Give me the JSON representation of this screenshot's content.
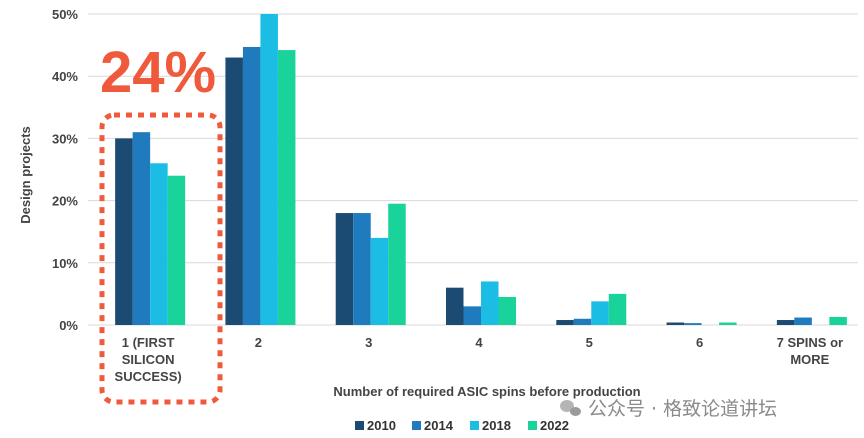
{
  "chart_data": {
    "type": "bar",
    "title": "",
    "xlabel": "Number of required ASIC spins before production",
    "ylabel": "Design projects",
    "ylim": [
      0,
      50
    ],
    "yticks": [
      "0%",
      "10%",
      "20%",
      "30%",
      "40%",
      "50%"
    ],
    "ytick_values": [
      0,
      10,
      20,
      30,
      40,
      50
    ],
    "categories": [
      [
        "1 (FIRST",
        "SILICON",
        "SUCCESS)"
      ],
      [
        "2"
      ],
      [
        "3"
      ],
      [
        "4"
      ],
      [
        "5"
      ],
      [
        "6"
      ],
      [
        "7 SPINS or",
        "MORE"
      ]
    ],
    "series": [
      {
        "name": "2010",
        "color": "#1b4a72",
        "values": [
          30,
          43,
          18,
          6,
          0.8,
          0.4,
          0.8
        ]
      },
      {
        "name": "2014",
        "color": "#1f7bbd",
        "values": [
          31,
          44.7,
          18,
          3,
          1,
          0.3,
          1.2
        ]
      },
      {
        "name": "2018",
        "color": "#1bbde4",
        "values": [
          26,
          50,
          14,
          7,
          3.8,
          0,
          0
        ]
      },
      {
        "name": "2022",
        "color": "#19d39a",
        "values": [
          24,
          44.2,
          19.5,
          4.5,
          5,
          0.4,
          1.3
        ]
      }
    ],
    "grid": true,
    "legend_position": "bottom",
    "annotation": {
      "text": "24%",
      "color": "#f05a3c",
      "highlight_category": 0
    }
  },
  "watermark": {
    "text": "公众号 · 格致论道讲坛"
  }
}
